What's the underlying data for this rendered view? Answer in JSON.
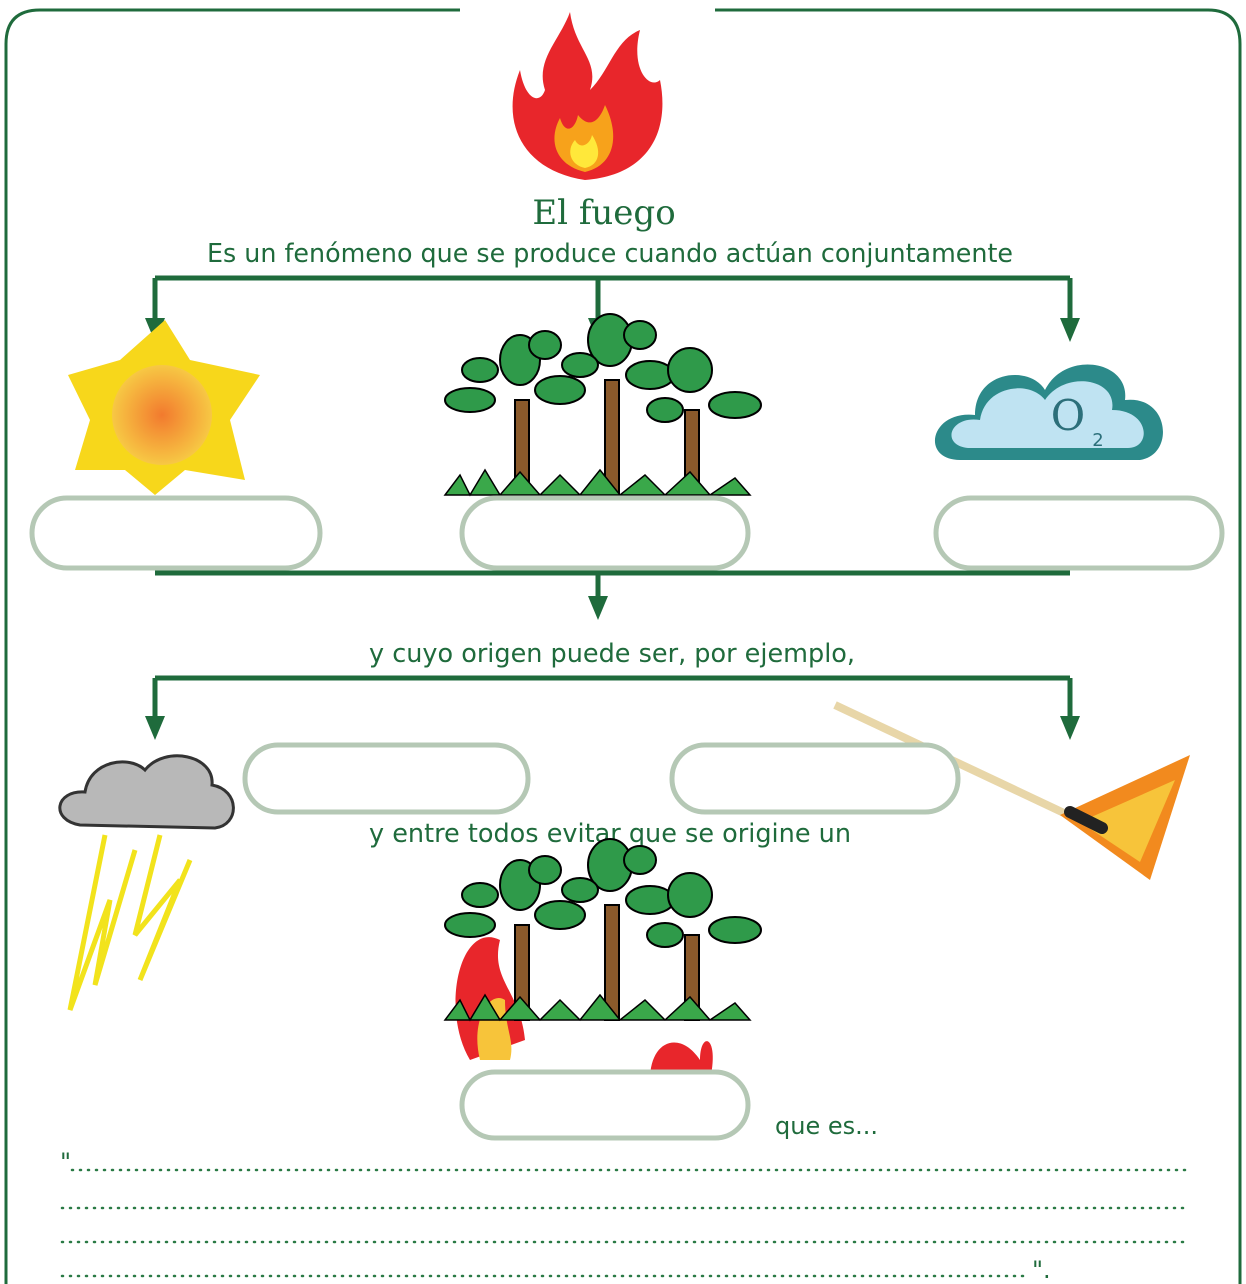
{
  "header": {
    "title": "El fuego",
    "intro": "Es un fenómeno que se produce cuando actúan conjuntamente"
  },
  "images": {
    "oxygen_symbol": "O",
    "oxygen_subscript": "2"
  },
  "middle": {
    "origin_text": "y cuyo origen puede ser, por ejemplo,",
    "prevent_text": "y entre todos evitar que se origine un"
  },
  "footer": {
    "definition_lead": "que es...",
    "opening_quote": "\"",
    "closing_quote": "\"."
  }
}
